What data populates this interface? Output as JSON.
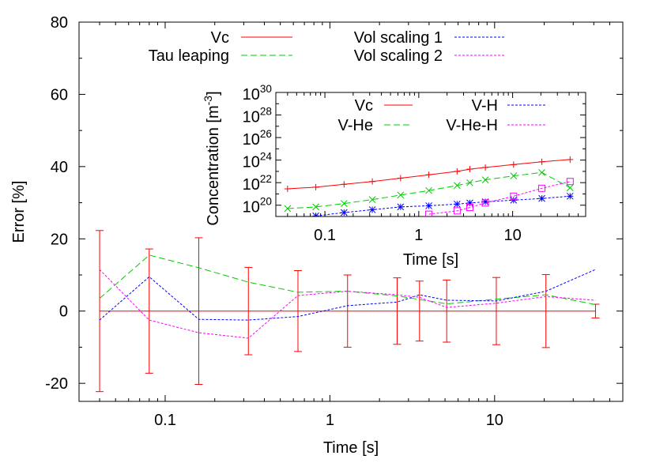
{
  "chart_data": [
    {
      "type": "line",
      "xlabel": "Time [s]",
      "ylabel": "Error [%]",
      "xscale": "log",
      "xlim": [
        0.03,
        60
      ],
      "ylim": [
        -25,
        80
      ],
      "xticks": [
        {
          "value": 0.1,
          "label": "0.1"
        },
        {
          "value": 1,
          "label": "1"
        },
        {
          "value": 10,
          "label": "10"
        }
      ],
      "yticks": [
        {
          "value": -20,
          "label": "-20"
        },
        {
          "value": 0,
          "label": "0"
        },
        {
          "value": 20,
          "label": "20"
        },
        {
          "value": 40,
          "label": "40"
        },
        {
          "value": 60,
          "label": "60"
        },
        {
          "value": 80,
          "label": "80"
        }
      ],
      "legend": "top",
      "series": [
        {
          "name": "Vc",
          "color": "#ff0000",
          "dash": "solid",
          "x": [
            0.04,
            0.08,
            0.16,
            0.32,
            0.64,
            1.28,
            2.56,
            3.5,
            5.12,
            10.24,
            20.48,
            40.96
          ],
          "y": [
            0,
            0,
            0,
            0,
            0,
            0,
            0,
            0,
            0,
            0,
            0,
            0
          ],
          "yerr": [
            22.3,
            17.2,
            20.3,
            12.1,
            11.2,
            10.0,
            9.2,
            8.3,
            8.6,
            9.3,
            10.1,
            1.9
          ]
        },
        {
          "name": "Tau leaping",
          "color": "#00cc00",
          "dash": "dashed",
          "x": [
            0.04,
            0.08,
            0.16,
            0.32,
            0.64,
            1.28,
            2.56,
            5.12,
            10.24,
            20.48,
            40.96
          ],
          "y": [
            3.5,
            15.5,
            12,
            8,
            5.2,
            5.5,
            4.2,
            2.0,
            3.3,
            4.5,
            1.8
          ]
        },
        {
          "name": "Vol scaling 1",
          "color": "#0000ff",
          "dash": "dotted",
          "x": [
            0.04,
            0.08,
            0.16,
            0.32,
            0.64,
            1.28,
            2.56,
            3.5,
            5.12,
            10.24,
            20.48,
            40.96
          ],
          "y": [
            -2.5,
            9.5,
            -2.3,
            -2.5,
            -1.5,
            1.5,
            2.5,
            4.5,
            3.0,
            2.8,
            5.5,
            11.5
          ]
        },
        {
          "name": "Vol scaling 2",
          "color": "#ff00ff",
          "dash": "dotted",
          "x": [
            0.04,
            0.08,
            0.16,
            0.32,
            0.64,
            1.28,
            2.56,
            3.5,
            5.12,
            10.24,
            20.48,
            40.96
          ],
          "y": [
            11.5,
            -2.5,
            -6,
            -7.5,
            4.3,
            5.5,
            4.5,
            3.8,
            1.0,
            2.2,
            4.0,
            3.0
          ]
        }
      ]
    },
    {
      "type": "line",
      "xlabel": "Time [s]",
      "ylabel_main": "Concentration [m",
      "ylabel_sup": "-3",
      "ylabel_end": "]",
      "xscale": "log",
      "yscale": "log",
      "xlim": [
        0.03,
        60
      ],
      "ylim_exp": [
        19,
        30
      ],
      "xticks": [
        {
          "value": 0.1,
          "label": "0.1"
        },
        {
          "value": 1,
          "label": "1"
        },
        {
          "value": 10,
          "label": "10"
        }
      ],
      "yticks": [
        {
          "exp": 20,
          "base": "10",
          "sup": "20"
        },
        {
          "exp": 22,
          "base": "10",
          "sup": "22"
        },
        {
          "exp": 24,
          "base": "10",
          "sup": "24"
        },
        {
          "exp": 26,
          "base": "10",
          "sup": "26"
        },
        {
          "exp": 28,
          "base": "10",
          "sup": "28"
        },
        {
          "exp": 30,
          "base": "10",
          "sup": "30"
        }
      ],
      "legend": "top",
      "series": [
        {
          "name": "Vc",
          "color": "#ff0000",
          "marker": "plus",
          "dash": "solid",
          "x": [
            0.04,
            0.08,
            0.16,
            0.32,
            0.64,
            1.28,
            2.56,
            3.5,
            5.12,
            10.24,
            20.48,
            40.96
          ],
          "log10_y": [
            21.45,
            21.6,
            21.85,
            22.1,
            22.4,
            22.7,
            23.0,
            23.2,
            23.35,
            23.6,
            23.85,
            24.05
          ]
        },
        {
          "name": "V-He",
          "color": "#00cc00",
          "marker": "x",
          "dash": "dashed",
          "x": [
            0.04,
            0.08,
            0.16,
            0.32,
            0.64,
            1.28,
            2.56,
            3.5,
            5.12,
            10.24,
            20.48,
            40.96
          ],
          "log10_y": [
            19.7,
            19.85,
            20.15,
            20.5,
            20.9,
            21.3,
            21.75,
            22.0,
            22.25,
            22.6,
            22.9,
            21.55
          ]
        },
        {
          "name": "V-H",
          "color": "#0000ff",
          "marker": "star",
          "dash": "dotted",
          "x": [
            0.08,
            0.16,
            0.32,
            0.64,
            1.28,
            2.56,
            3.5,
            5.12,
            10.24,
            20.48,
            40.96
          ],
          "log10_y": [
            19.05,
            19.35,
            19.6,
            19.85,
            19.95,
            20.1,
            20.2,
            20.3,
            20.45,
            20.6,
            20.8
          ]
        },
        {
          "name": "V-He-H",
          "color": "#ff00ff",
          "marker": "square",
          "dash": "dotted",
          "x": [
            1.28,
            2.56,
            3.5,
            5.12,
            10.24,
            20.48,
            40.96
          ],
          "log10_y": [
            19.2,
            19.5,
            19.8,
            20.2,
            20.8,
            21.5,
            22.1
          ]
        }
      ]
    }
  ]
}
